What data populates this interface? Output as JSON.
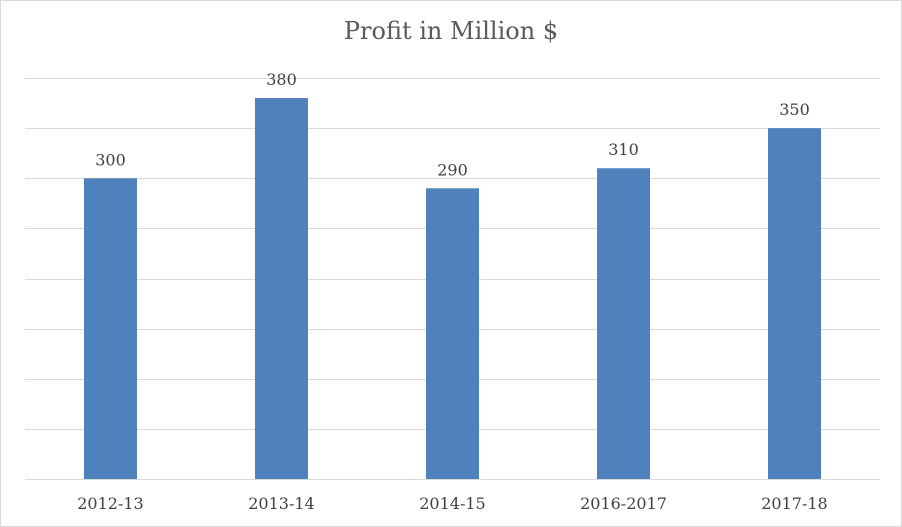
{
  "chart_data": {
    "type": "bar",
    "title": "Profit in Million $",
    "categories": [
      "2012-13",
      "2013-14",
      "2014-15",
      "2016-2017",
      "2017-18"
    ],
    "values": [
      300,
      380,
      290,
      310,
      350
    ],
    "ylim": [
      0,
      400
    ],
    "y_grid_step": 50,
    "grid": true,
    "legend": "none",
    "data_labels": true,
    "bar_color": "#4f81bd"
  }
}
